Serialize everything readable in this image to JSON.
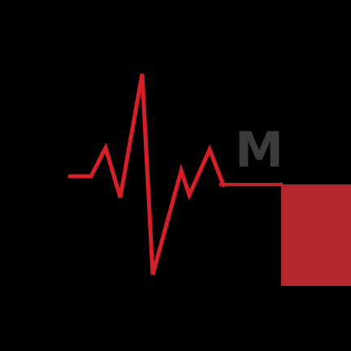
{
  "logo": {
    "letter": "M",
    "colors": {
      "background": "#000000",
      "pulse": "#d61f26",
      "block": "#b3272d",
      "letter": "#3a3b3b"
    },
    "icon": "heartbeat-pulse-icon"
  }
}
